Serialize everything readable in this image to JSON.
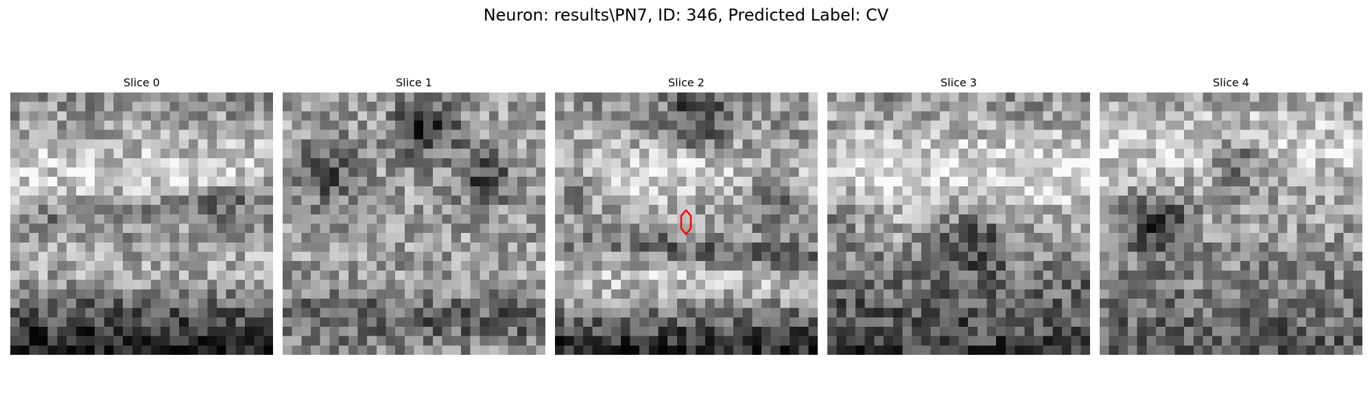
{
  "figure": {
    "title": "Neuron: results\\PN7, ID: 346, Predicted Label: CV",
    "colormap": "gray"
  },
  "slices": [
    {
      "title": "Slice 0",
      "has_marker": false
    },
    {
      "title": "Slice 1",
      "has_marker": false
    },
    {
      "title": "Slice 2",
      "has_marker": true
    },
    {
      "title": "Slice 3",
      "has_marker": false
    },
    {
      "title": "Slice 4",
      "has_marker": false
    }
  ],
  "marker": {
    "color": "#ff0000",
    "shape": "outline"
  }
}
